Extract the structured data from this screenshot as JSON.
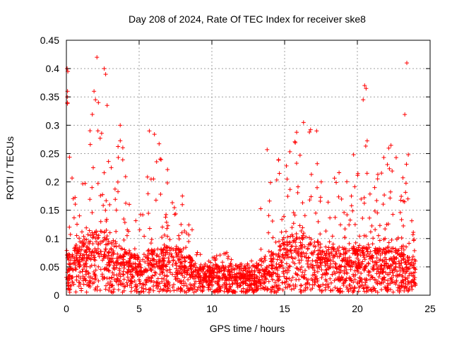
{
  "chart_data": {
    "type": "scatter",
    "title": "Day 208 of 2024, Rate Of TEC Index for receiver ske8",
    "xlabel": "GPS time / hours",
    "ylabel": "ROTI / TECUs",
    "xlim": [
      0,
      25
    ],
    "ylim": [
      0,
      0.45
    ],
    "xticks": [
      0,
      5,
      10,
      15,
      20,
      25
    ],
    "yticks": [
      0,
      0.05,
      0.1,
      0.15,
      0.2,
      0.25,
      0.3,
      0.35,
      0.4,
      0.45
    ],
    "xtick_labels": [
      "0",
      "5",
      "10",
      "15",
      "20",
      "25"
    ],
    "ytick_labels": [
      "0",
      "0.05",
      "0.1",
      "0.15",
      "0.2",
      "0.25",
      "0.3",
      "0.35",
      "0.4",
      "0.45"
    ],
    "grid": true,
    "marker": "plus",
    "color": "#ff0000",
    "x_data_range": [
      0,
      24
    ],
    "density_profile": [
      {
        "x": 0.0,
        "y_median": 0.04,
        "y_max": 0.4
      },
      {
        "x": 0.5,
        "y_median": 0.05,
        "y_max": 0.2
      },
      {
        "x": 1.0,
        "y_median": 0.06,
        "y_max": 0.18
      },
      {
        "x": 2.0,
        "y_median": 0.07,
        "y_max": 0.36
      },
      {
        "x": 2.5,
        "y_median": 0.07,
        "y_max": 0.42
      },
      {
        "x": 3.0,
        "y_median": 0.06,
        "y_max": 0.3
      },
      {
        "x": 4.0,
        "y_median": 0.05,
        "y_max": 0.27
      },
      {
        "x": 5.0,
        "y_median": 0.04,
        "y_max": 0.14
      },
      {
        "x": 6.0,
        "y_median": 0.05,
        "y_max": 0.29
      },
      {
        "x": 7.0,
        "y_median": 0.05,
        "y_max": 0.26
      },
      {
        "x": 8.0,
        "y_median": 0.05,
        "y_max": 0.19
      },
      {
        "x": 9.0,
        "y_median": 0.03,
        "y_max": 0.08
      },
      {
        "x": 10.0,
        "y_median": 0.03,
        "y_max": 0.07
      },
      {
        "x": 11.0,
        "y_median": 0.03,
        "y_max": 0.08
      },
      {
        "x": 12.0,
        "y_median": 0.03,
        "y_max": 0.06
      },
      {
        "x": 13.0,
        "y_median": 0.03,
        "y_max": 0.07
      },
      {
        "x": 13.5,
        "y_median": 0.04,
        "y_max": 0.26
      },
      {
        "x": 14.0,
        "y_median": 0.04,
        "y_max": 0.2
      },
      {
        "x": 15.0,
        "y_median": 0.06,
        "y_max": 0.27
      },
      {
        "x": 16.0,
        "y_median": 0.07,
        "y_max": 0.31
      },
      {
        "x": 17.0,
        "y_median": 0.06,
        "y_max": 0.29
      },
      {
        "x": 18.0,
        "y_median": 0.05,
        "y_max": 0.18
      },
      {
        "x": 19.0,
        "y_median": 0.05,
        "y_max": 0.25
      },
      {
        "x": 20.0,
        "y_median": 0.05,
        "y_max": 0.28
      },
      {
        "x": 20.5,
        "y_median": 0.05,
        "y_max": 0.37
      },
      {
        "x": 21.0,
        "y_median": 0.05,
        "y_max": 0.2
      },
      {
        "x": 22.0,
        "y_median": 0.05,
        "y_max": 0.26
      },
      {
        "x": 23.0,
        "y_median": 0.05,
        "y_max": 0.28
      },
      {
        "x": 23.3,
        "y_median": 0.04,
        "y_max": 0.41
      },
      {
        "x": 24.0,
        "y_median": 0.04,
        "y_max": 0.11
      }
    ],
    "outliers": [
      {
        "x": 0.05,
        "y": 0.4
      },
      {
        "x": 0.1,
        "y": 0.395
      },
      {
        "x": 0.08,
        "y": 0.36
      },
      {
        "x": 0.06,
        "y": 0.35
      },
      {
        "x": 0.07,
        "y": 0.34
      },
      {
        "x": 2.1,
        "y": 0.42
      },
      {
        "x": 2.6,
        "y": 0.4
      },
      {
        "x": 2.7,
        "y": 0.39
      },
      {
        "x": 1.9,
        "y": 0.36
      },
      {
        "x": 2.0,
        "y": 0.345
      },
      {
        "x": 2.2,
        "y": 0.34
      },
      {
        "x": 2.8,
        "y": 0.335
      },
      {
        "x": 3.7,
        "y": 0.3
      },
      {
        "x": 5.7,
        "y": 0.29
      },
      {
        "x": 13.8,
        "y": 0.257
      },
      {
        "x": 16.3,
        "y": 0.305
      },
      {
        "x": 17.2,
        "y": 0.29
      },
      {
        "x": 20.5,
        "y": 0.37
      },
      {
        "x": 20.6,
        "y": 0.365
      },
      {
        "x": 20.4,
        "y": 0.345
      },
      {
        "x": 23.4,
        "y": 0.41
      },
      {
        "x": 23.5,
        "y": 0.248
      }
    ]
  }
}
